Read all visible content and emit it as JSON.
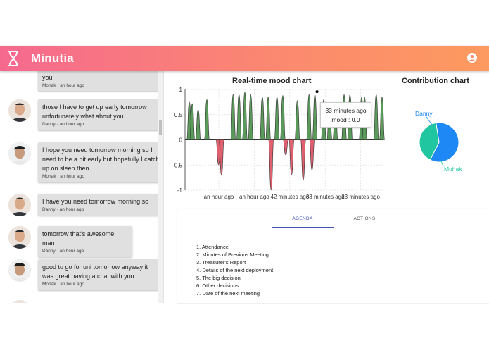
{
  "app": {
    "title": "Minutia"
  },
  "chat": {
    "messages": [
      {
        "text": "you",
        "author": "Mohak",
        "time": "an hour ago"
      },
      {
        "text": "those I have to get up early tomorrow unfortunately what about you",
        "author": "Danny",
        "time": "an hour ago"
      },
      {
        "text": "I hope you need tomorrow morning so I need to be a bit early but hopefully I catch up on sleep then",
        "author": "Mohak",
        "time": "an hour ago"
      },
      {
        "text": "I have you need tomorrow morning so",
        "author": "Danny",
        "time": "an hour ago"
      },
      {
        "text": "tomorrow that's awesome man",
        "author": "Danny",
        "time": "an hour ago"
      },
      {
        "text": "good to go for uni tomorrow anyway it was great having a chat with you",
        "author": "Mohak",
        "time": "an hour ago"
      }
    ],
    "meta_separator": " · "
  },
  "mood_chart": {
    "title": "Real-time mood chart",
    "tooltip": {
      "line1": "33 minutes ago",
      "line2": "mood : 0.9"
    }
  },
  "contribution_chart": {
    "title": "Contribution chart"
  },
  "chart_data": [
    {
      "type": "area",
      "title": "Real-time mood chart",
      "ylim": [
        -1,
        1
      ],
      "yticks": [
        1,
        0.5,
        0,
        -0.5,
        -1
      ],
      "xtick_labels": [
        "an hour ago",
        "an hour ago",
        "42 minutes ago",
        "33 minutes ago",
        "23 minutes ago"
      ],
      "positive_color": "#5a9a5a",
      "negative_color": "#e06070",
      "values": [
        0,
        0.75,
        0.72,
        0,
        0.6,
        0,
        0,
        0.8,
        0,
        0,
        0,
        -0.5,
        -0.7,
        0,
        0,
        0,
        0.9,
        0,
        0.9,
        0,
        0.95,
        0,
        0.9,
        0,
        0,
        0,
        0.85,
        0,
        0.85,
        -1.0,
        0,
        0.85,
        0,
        0.88,
        -0.3,
        0,
        -0.7,
        0,
        0.78,
        0,
        -0.8,
        0,
        0.9,
        -0.6,
        0.9,
        0,
        0,
        0.8,
        0,
        0.7,
        0,
        0.6,
        0,
        0,
        0.9,
        0,
        0.9,
        0,
        0,
        0,
        0.85,
        0.85,
        0,
        0,
        0,
        0.9,
        0,
        0.85
      ]
    },
    {
      "type": "pie",
      "title": "Contribution chart",
      "labels": [
        "Danny",
        "Mohak"
      ],
      "values": [
        60,
        40
      ],
      "colors": [
        "#1e88f5",
        "#20c6a0"
      ]
    }
  ],
  "agenda_panel": {
    "tabs": [
      {
        "label": "AGENDA",
        "active": true
      },
      {
        "label": "ACTIONS",
        "active": false
      }
    ],
    "items": [
      "1. Attendance",
      "2. Minutes of Previous Meeting",
      "3. Treasurer's Report",
      "4. Details of the next deployment",
      "5. The big decision",
      "6. Other decisions",
      "7. Date of the next meeting"
    ]
  },
  "colors": {
    "accent": "#3f51b5",
    "appbar_start": "#f6698f",
    "appbar_end": "#fd9a5f"
  }
}
